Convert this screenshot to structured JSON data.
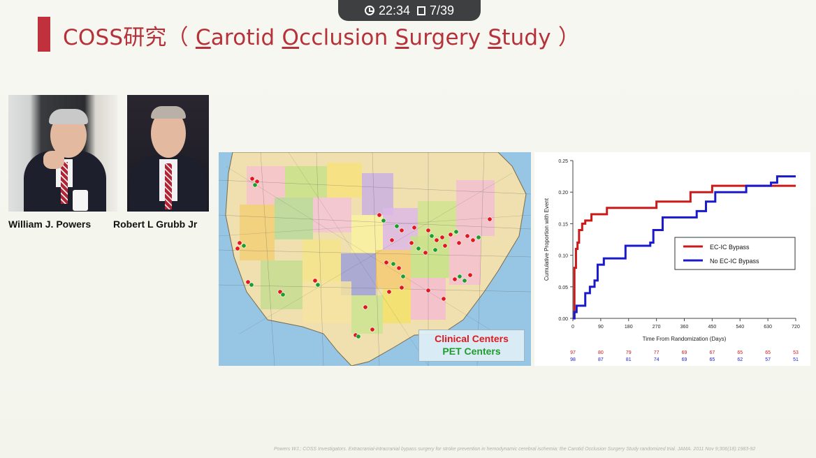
{
  "status": {
    "time": "22:34",
    "page": "7/39"
  },
  "title": {
    "prefix": "COSS研究",
    "open": "（ ",
    "w1_initial": "C",
    "w1_rest": "arotid",
    "w2_initial": "O",
    "w2_rest": "cclusion",
    "w3_initial": "S",
    "w3_rest": "urgery",
    "w4_initial": "S",
    "w4_rest": "tudy",
    "close": " ）"
  },
  "people": [
    "William J. Powers",
    "Robert L Grubb Jr"
  ],
  "map": {
    "legend_clinical": "Clinical Centers",
    "legend_pet": "PET Centers",
    "clinical_color": "#e0181e",
    "pet_color": "#1e9c2c"
  },
  "chart_data": {
    "type": "line",
    "xlabel": "Time From Randomization (Days)",
    "ylabel": "Cumulative Proportion with Event",
    "xlim": [
      0,
      720
    ],
    "ylim": [
      0,
      0.25
    ],
    "xticks": [
      "0",
      "90",
      "180",
      "270",
      "360",
      "450",
      "540",
      "630",
      "720"
    ],
    "yticks": [
      "0.00",
      "0.05",
      "0.10",
      "0.15",
      "0.20",
      "0.25"
    ],
    "legend_position": "center-right",
    "series": [
      {
        "name": "EC-IC Bypass",
        "color": "#cc1a1a",
        "x": [
          0,
          5,
          10,
          15,
          20,
          30,
          40,
          60,
          90,
          110,
          130,
          160,
          200,
          230,
          270,
          320,
          380,
          450,
          520,
          620,
          720
        ],
        "y": [
          0,
          0.08,
          0.11,
          0.12,
          0.14,
          0.15,
          0.155,
          0.165,
          0.165,
          0.175,
          0.175,
          0.175,
          0.175,
          0.175,
          0.185,
          0.185,
          0.2,
          0.21,
          0.21,
          0.21,
          0.21
        ]
      },
      {
        "name": "No EC-IC Bypass",
        "color": "#1a1acc",
        "x": [
          0,
          5,
          12,
          25,
          40,
          55,
          70,
          80,
          100,
          130,
          170,
          210,
          250,
          260,
          290,
          330,
          370,
          400,
          430,
          460,
          510,
          560,
          600,
          640,
          660,
          720
        ],
        "y": [
          0,
          0.01,
          0.02,
          0.02,
          0.04,
          0.05,
          0.06,
          0.085,
          0.095,
          0.095,
          0.115,
          0.115,
          0.12,
          0.14,
          0.16,
          0.16,
          0.16,
          0.17,
          0.185,
          0.2,
          0.2,
          0.21,
          0.21,
          0.215,
          0.225,
          0.225
        ]
      }
    ],
    "at_risk": [
      {
        "name": "EC-IC Bypass",
        "color": "#cc1a1a",
        "values": [
          "97",
          "80",
          "79",
          "77",
          "69",
          "67",
          "65",
          "65",
          "53"
        ]
      },
      {
        "name": "No EC-IC Bypass",
        "color": "#1a1acc",
        "values": [
          "98",
          "87",
          "81",
          "74",
          "69",
          "65",
          "62",
          "57",
          "51"
        ]
      }
    ]
  },
  "citation": "Powers WJ.; COSS Investigators. Extracranial-intracranial bypass surgery for stroke prevention in hemodynamic cerebral ischemia: the Carotid Occlusion Surgery Study randomized trial. JAMA. 2011 Nov 9;306(18):1983-92"
}
